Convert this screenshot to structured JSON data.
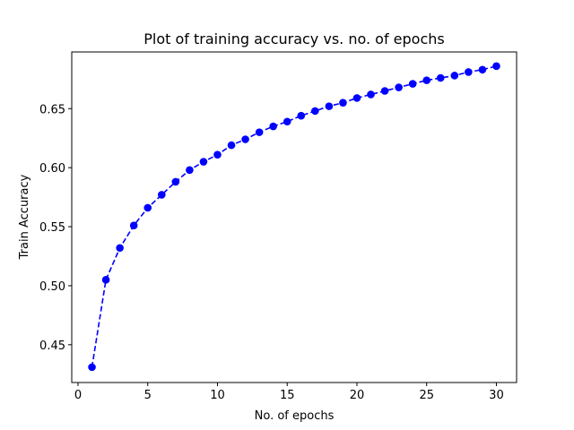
{
  "chart_data": {
    "type": "line",
    "title": "Plot of training accuracy vs. no. of epochs",
    "xlabel": "No. of epochs",
    "ylabel": "Train Accuracy",
    "xlim": [
      -0.45,
      31.45
    ],
    "ylim": [
      0.418,
      0.698
    ],
    "xticks": [
      0,
      5,
      10,
      15,
      20,
      25,
      30
    ],
    "yticks": [
      0.45,
      0.5,
      0.55,
      0.6,
      0.65
    ],
    "ytick_labels": [
      "0.45",
      "0.50",
      "0.55",
      "0.60",
      "0.65"
    ],
    "grid": false,
    "series": [
      {
        "color": "#0000ff",
        "line_style": "dashed",
        "marker": "circle",
        "x": [
          1,
          2,
          3,
          4,
          5,
          6,
          7,
          8,
          9,
          10,
          11,
          12,
          13,
          14,
          15,
          16,
          17,
          18,
          19,
          20,
          21,
          22,
          23,
          24,
          25,
          26,
          27,
          28,
          29,
          30
        ],
        "y": [
          0.431,
          0.505,
          0.532,
          0.551,
          0.566,
          0.577,
          0.588,
          0.598,
          0.605,
          0.611,
          0.619,
          0.624,
          0.63,
          0.635,
          0.639,
          0.644,
          0.648,
          0.652,
          0.655,
          0.659,
          0.662,
          0.665,
          0.668,
          0.671,
          0.674,
          0.676,
          0.678,
          0.681,
          0.683,
          0.686
        ]
      }
    ]
  }
}
